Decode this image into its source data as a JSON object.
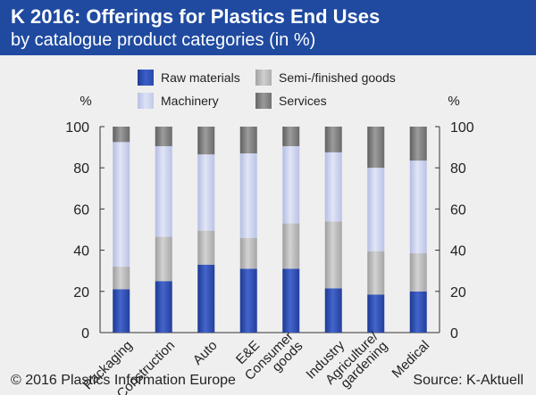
{
  "header": {
    "title": "K 2016: Offerings for Plastics End Uses",
    "subtitle": "by catalogue product categories (in %)"
  },
  "footer": {
    "copyright": "© 2016 Plastics Information Europe",
    "source": "Source: K-Aktuell"
  },
  "colors": {
    "header_bg": "#1f4aa0",
    "raw_materials": "#2d4fb2",
    "semi_finished": "#b3b3b3",
    "machinery": "#c5cceb",
    "services": "#7a7a7a"
  },
  "chart_data": {
    "type": "bar",
    "stacked": true,
    "title": "K 2016: Offerings for Plastics End Uses",
    "subtitle": "by catalogue product categories (in %)",
    "ylabel_left": "%",
    "ylabel_right": "%",
    "ylim": [
      0,
      100
    ],
    "yticks": [
      0,
      20,
      40,
      60,
      80,
      100
    ],
    "grid": false,
    "legend_position": "top",
    "categories": [
      "Packaging",
      "Construction",
      "Auto",
      "E&E",
      "Consumer goods",
      "Industry",
      "Agriculture/ gardening",
      "Medical"
    ],
    "category_lines": [
      [
        "Packaging"
      ],
      [
        "Construction"
      ],
      [
        "Auto"
      ],
      [
        "E&E"
      ],
      [
        "Consumer",
        "goods"
      ],
      [
        "Industry"
      ],
      [
        "Agriculture/",
        "gardening"
      ],
      [
        "Medical"
      ]
    ],
    "series": [
      {
        "name": "Raw materials",
        "color": "#2d4fb2",
        "values": [
          21,
          25,
          33,
          31,
          31,
          21.5,
          18.5,
          20
        ]
      },
      {
        "name": "Semi-/finished goods",
        "color": "#b3b3b3",
        "values": [
          11,
          21.5,
          16.5,
          15,
          22,
          32.5,
          21,
          18.5
        ]
      },
      {
        "name": "Machinery",
        "color": "#c5cceb",
        "values": [
          60.5,
          44,
          37,
          41,
          37.5,
          33.5,
          40.5,
          45
        ]
      },
      {
        "name": "Services",
        "color": "#7a7a7a",
        "values": [
          7.5,
          9.5,
          13.5,
          13,
          9.5,
          12.5,
          20,
          16.5
        ]
      }
    ]
  }
}
